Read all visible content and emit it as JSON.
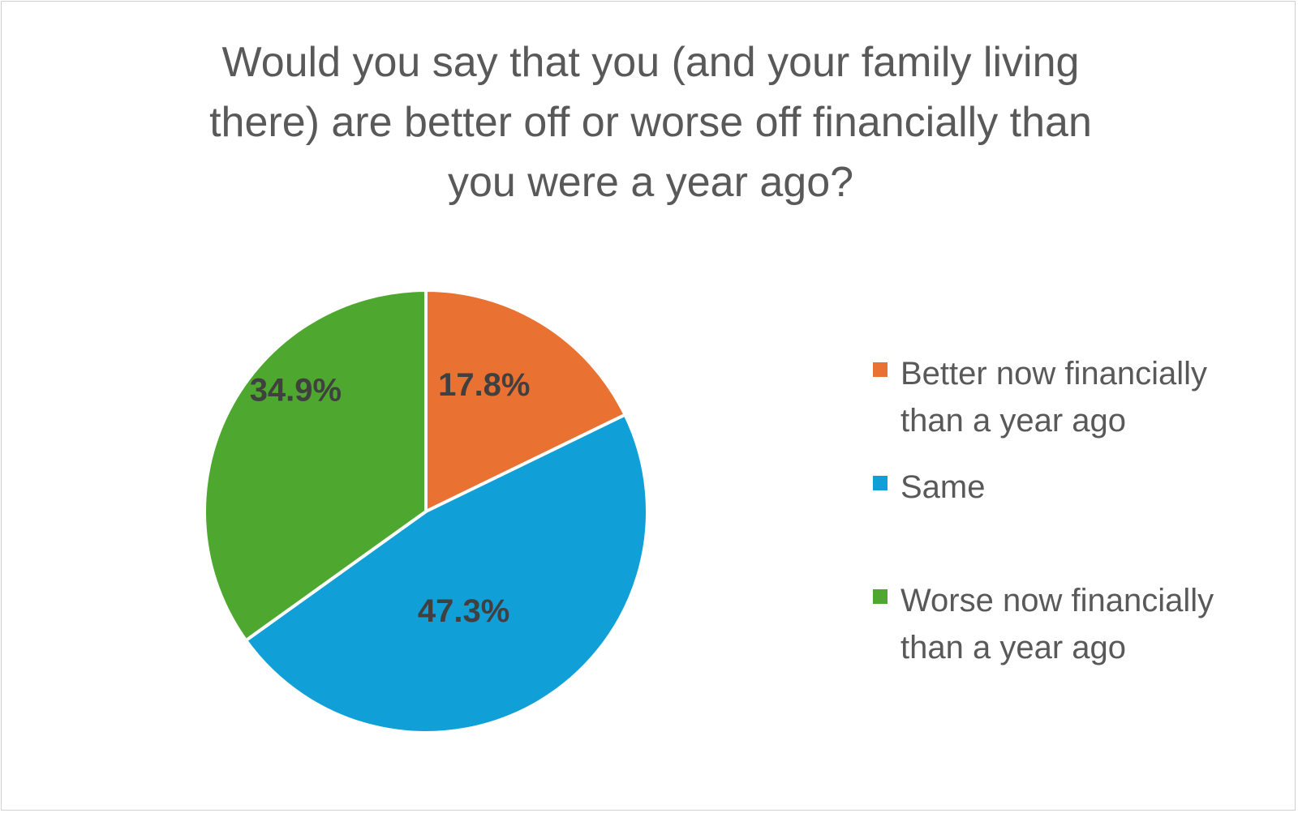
{
  "chart_data": {
    "type": "pie",
    "title_lines": [
      "Would you say that you (and your family living",
      "there) are better off or worse off financially than",
      "you were a year ago?"
    ],
    "legend_position": "right",
    "slices": [
      {
        "label": "Better now financially than a year ago",
        "legend_lines": [
          "Better now financially",
          "than a year ago"
        ],
        "value": 17.8,
        "value_label": "17.8%",
        "color": "#e97132"
      },
      {
        "label": "Same",
        "legend_lines": [
          "Same"
        ],
        "value": 47.3,
        "value_label": "47.3%",
        "color": "#109fd6"
      },
      {
        "label": "Worse now financially than a year ago",
        "legend_lines": [
          "Worse now financially",
          "than a year ago"
        ],
        "value": 34.9,
        "value_label": "34.9%",
        "color": "#4ea72e"
      }
    ]
  }
}
